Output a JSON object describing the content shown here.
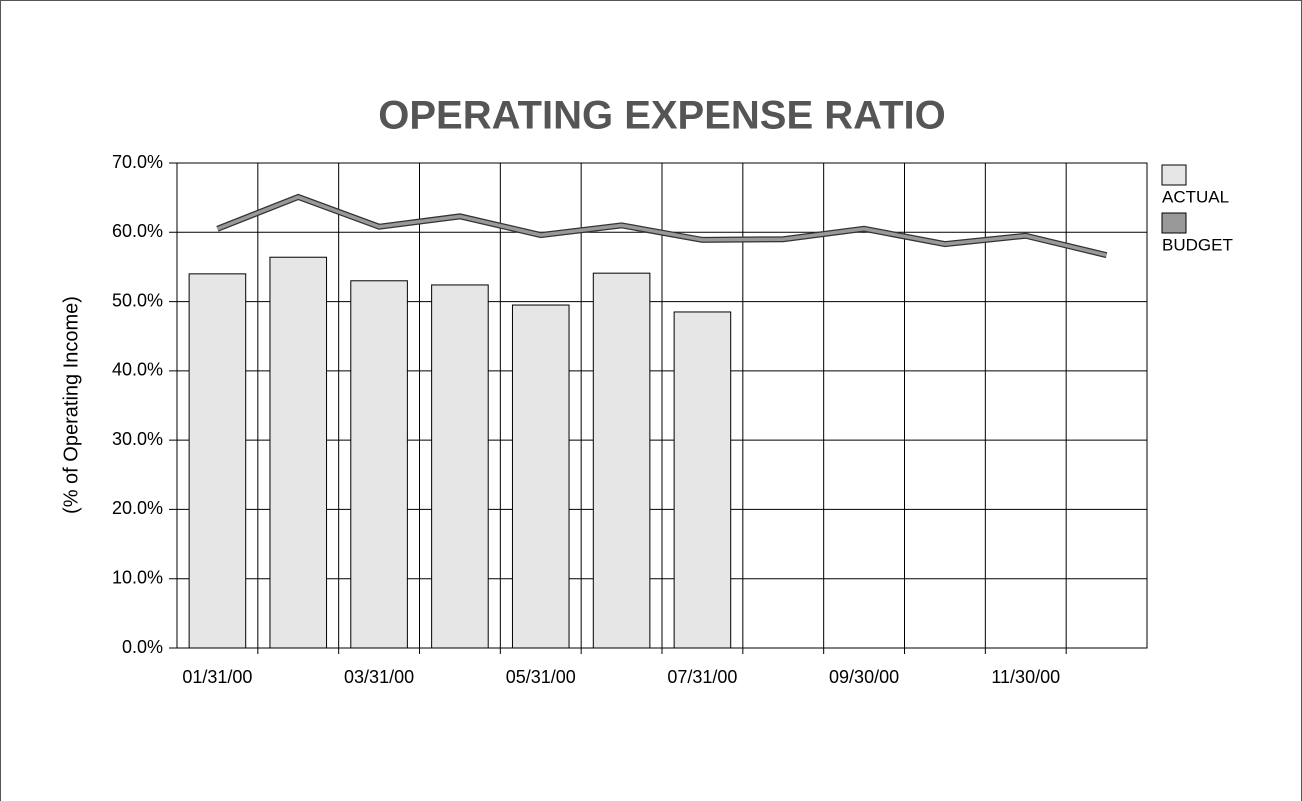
{
  "chart_data": {
    "type": "bar-line",
    "title": "OPERATING EXPENSE RATIO",
    "y_label": "(% of Operating Income)",
    "categories": [
      "01/31/00",
      null,
      "03/31/00",
      null,
      "05/31/00",
      null,
      "07/31/00",
      null,
      "09/30/00",
      null,
      "11/30/00",
      null
    ],
    "series": [
      {
        "name": "ACTUAL",
        "type": "bar",
        "color": "#e6e6e6",
        "values": [
          54.0,
          56.4,
          53.0,
          52.4,
          49.5,
          54.1,
          48.5,
          null,
          null,
          null,
          null,
          null
        ]
      },
      {
        "name": "BUDGET",
        "type": "line",
        "color": "#999999",
        "values": [
          60.5,
          65.1,
          60.8,
          62.3,
          59.6,
          61.0,
          58.9,
          59.0,
          60.5,
          58.3,
          59.5,
          56.7
        ]
      }
    ],
    "ylim": [
      0,
      70
    ],
    "yticks": [
      {
        "value": 0,
        "label": "0.0%"
      },
      {
        "value": 10,
        "label": "10.0%"
      },
      {
        "value": 20,
        "label": "20.0%"
      },
      {
        "value": 30,
        "label": "30.0%"
      },
      {
        "value": 40,
        "label": "40.0%"
      },
      {
        "value": 50,
        "label": "50.0%"
      },
      {
        "value": 60,
        "label": "60.0%"
      },
      {
        "value": 70,
        "label": "70.0%"
      }
    ],
    "grid": true,
    "legend": "right"
  }
}
